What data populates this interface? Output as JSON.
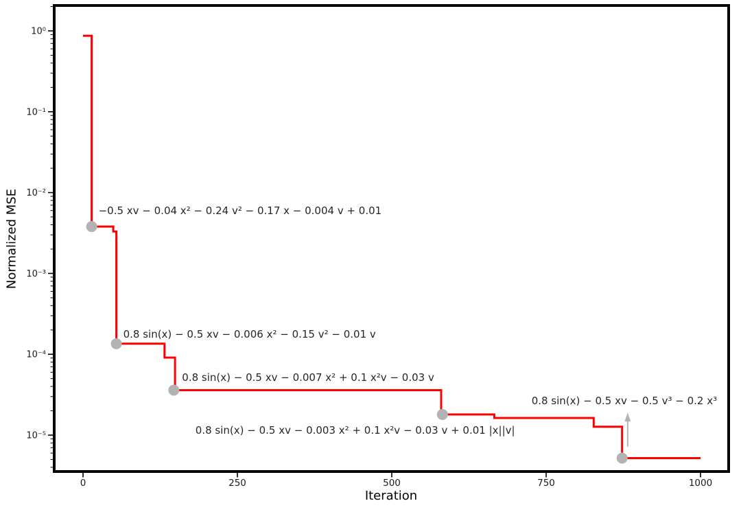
{
  "figure": {
    "background": "#ffffff"
  },
  "chart_data": {
    "type": "line",
    "subtype": "step-post",
    "title": "",
    "xlabel": "Iteration",
    "ylabel": "Normalized MSE",
    "x_scale": "linear",
    "y_scale": "log",
    "xlim": [
      -49,
      1048
    ],
    "ylim": [
      3.4e-06,
      2.14
    ],
    "grid": false,
    "legend": "none",
    "x_ticks": [
      {
        "value": 0,
        "label": "0"
      },
      {
        "value": 250,
        "label": "250"
      },
      {
        "value": 500,
        "label": "500"
      },
      {
        "value": 750,
        "label": "750"
      },
      {
        "value": 1000,
        "label": "1000"
      }
    ],
    "y_ticks": [
      {
        "value": 1,
        "label": "10⁰"
      },
      {
        "value": 0.1,
        "label": "10⁻¹"
      },
      {
        "value": 0.01,
        "label": "10⁻²"
      },
      {
        "value": 0.001,
        "label": "10⁻³"
      },
      {
        "value": 0.0001,
        "label": "10⁻⁴"
      },
      {
        "value": 1e-05,
        "label": "10⁻⁵"
      }
    ],
    "series": [
      {
        "name": "normalized-mse",
        "points": [
          [
            0,
            0.87
          ],
          [
            14,
            0.87
          ],
          [
            14,
            0.0038
          ],
          [
            49,
            0.0038
          ],
          [
            49,
            0.0033
          ],
          [
            54,
            0.0033
          ],
          [
            54,
            0.000135
          ],
          [
            132,
            0.000135
          ],
          [
            132,
            9.1e-05
          ],
          [
            149,
            9.1e-05
          ],
          [
            149,
            3.6e-05
          ],
          [
            580,
            3.6e-05
          ],
          [
            580,
            1.8e-05
          ],
          [
            666,
            1.8e-05
          ],
          [
            666,
            1.63e-05
          ],
          [
            827,
            1.63e-05
          ],
          [
            827,
            1.27e-05
          ],
          [
            873,
            1.27e-05
          ],
          [
            873,
            5.2e-06
          ],
          [
            1000,
            5.2e-06
          ]
        ]
      }
    ],
    "markers": [
      {
        "iter": 14,
        "mse": 0.0038,
        "label": "−0.5 xv − 0.04 x² − 0.24 v² − 0.17 x − 0.004 v + 0.01",
        "label_offset": [
          10,
          -23
        ]
      },
      {
        "iter": 54,
        "mse": 0.000135,
        "label": "0.8 sin(x) − 0.5 xv − 0.006 x² − 0.15 v² − 0.01 v",
        "label_offset": [
          10,
          -14
        ]
      },
      {
        "iter": 147,
        "mse": 3.6e-05,
        "label": "0.8 sin(x) − 0.5 xv − 0.007 x² + 0.1 x²v − 0.03 v",
        "label_offset": [
          12,
          -18
        ]
      },
      {
        "iter": 582,
        "mse": 1.8e-05,
        "label": "0.8 sin(x) − 0.5 xv − 0.003 x² + 0.1 x²v − 0.03 v + 0.01 |x||v|",
        "label_offset": [
          -360,
          23
        ]
      },
      {
        "iter": 873,
        "mse": 5.2e-06,
        "label": "0.8 sin(x) − 0.5 xv − 0.5 v³ − 0.2 x³",
        "label_offset": [
          -132,
          -83
        ]
      }
    ],
    "arrow": {
      "x_iter": 882,
      "from_mse": 7.2e-06,
      "to_mse": 1.9e-05
    },
    "colors": {
      "line": "#ff0000",
      "marker": "#b3b3b3",
      "arrow": "#b3b3b3",
      "annotation_text": "#262626",
      "tick_text": "#1a1a1a",
      "frame": "#000000"
    }
  }
}
